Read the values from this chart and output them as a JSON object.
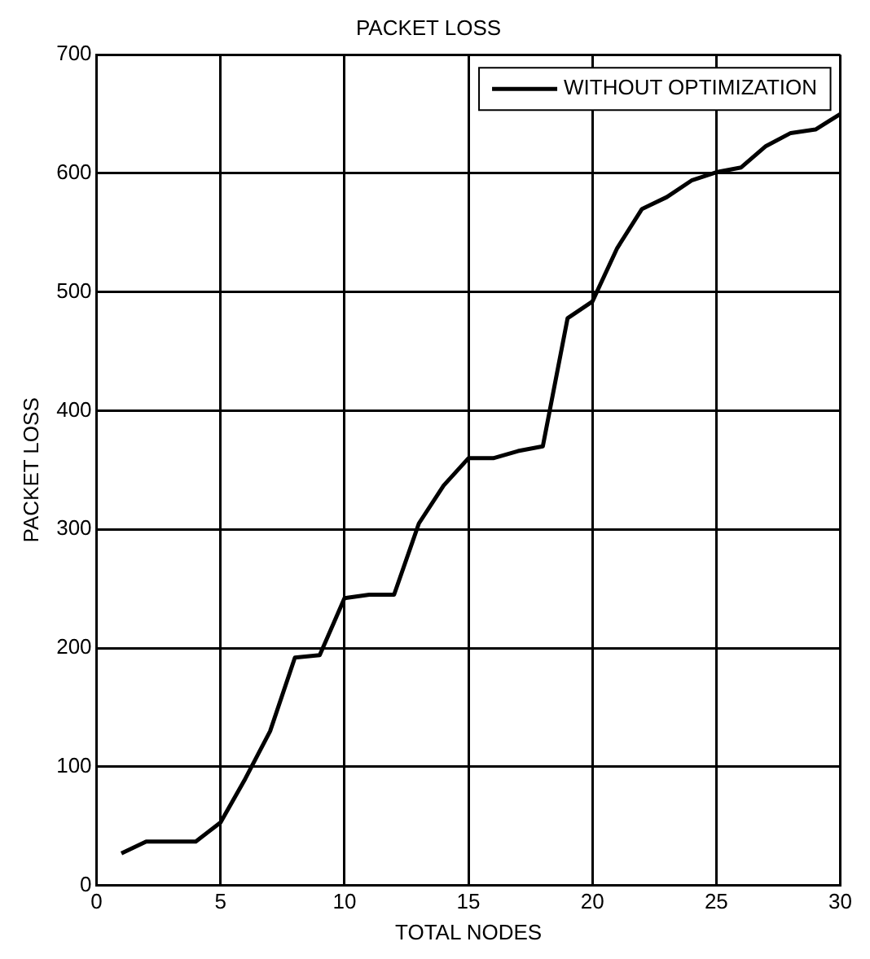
{
  "chart_data": {
    "type": "line",
    "title": "PACKET LOSS",
    "xlabel": "TOTAL NODES",
    "ylabel": "PACKET LOSS",
    "x": [
      1,
      2,
      3,
      4,
      5,
      6,
      7,
      8,
      9,
      10,
      11,
      12,
      13,
      14,
      15,
      16,
      17,
      18,
      19,
      20,
      21,
      22,
      23,
      24,
      25,
      26,
      27,
      28,
      29,
      30
    ],
    "series": [
      {
        "name": "WITHOUT OPTIMIZATION",
        "color": "#000000",
        "values": [
          27,
          37,
          37,
          37,
          53,
          90,
          130,
          192,
          194,
          242,
          245,
          245,
          305,
          337,
          360,
          360,
          366,
          370,
          478,
          492,
          537,
          570,
          580,
          594,
          601,
          605,
          623,
          634,
          637,
          650
        ]
      }
    ],
    "xlim": [
      0,
      30
    ],
    "xticks": [
      0,
      5,
      10,
      15,
      20,
      25,
      30
    ],
    "ylim": [
      0,
      700
    ],
    "yticks": [
      0,
      100,
      200,
      300,
      400,
      500,
      600,
      700
    ],
    "grid": true,
    "legend": "top right",
    "marker": "none",
    "line_style": "solid"
  }
}
